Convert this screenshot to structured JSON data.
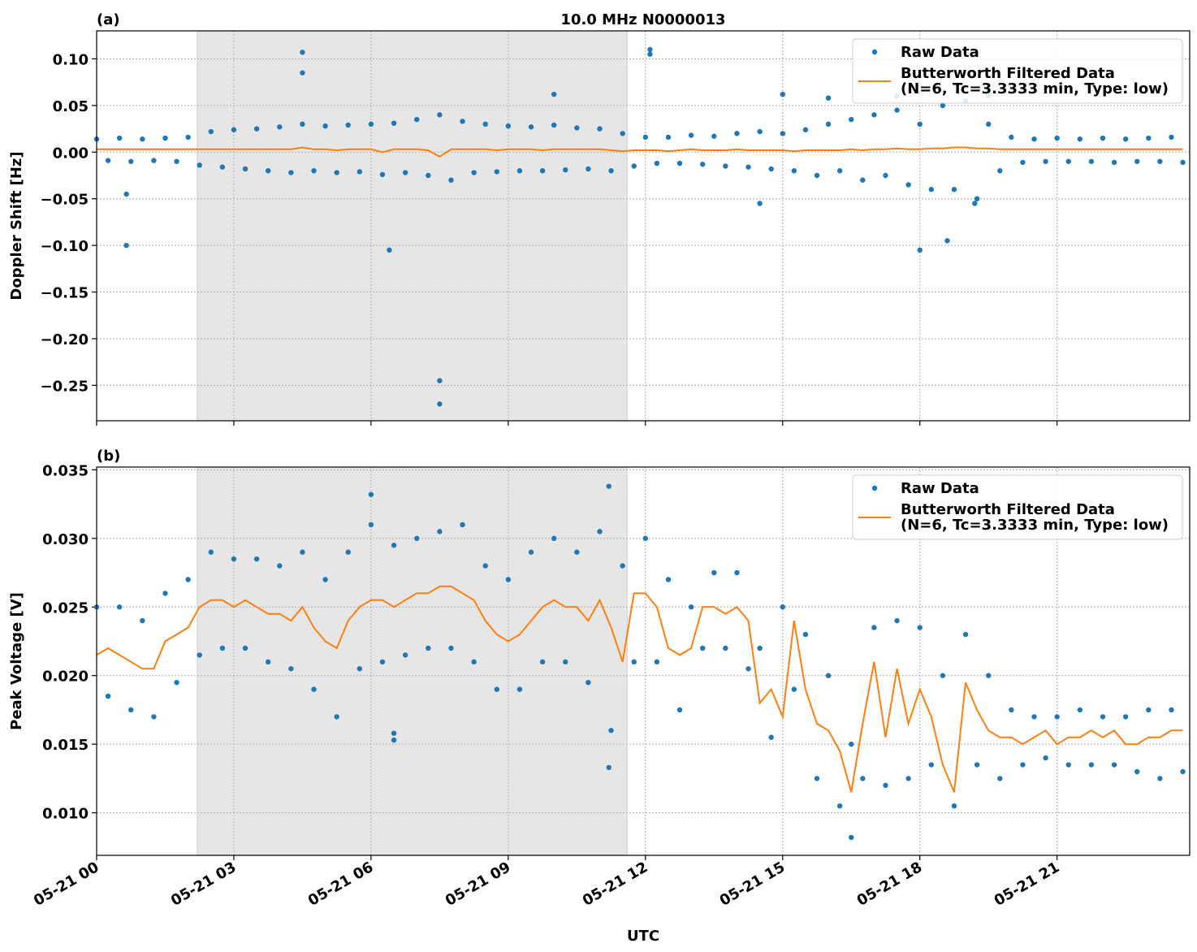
{
  "chart_data": [
    {
      "type": "scatter",
      "title": "10.0 MHz N0000013",
      "panel_label": "(a)",
      "ylabel": "Doppler Shift [Hz]",
      "xlim": [
        0,
        23.9
      ],
      "ylim": [
        -0.288,
        0.13
      ],
      "grid": true,
      "legend": "upper right",
      "shade": [
        2.2,
        11.6
      ],
      "yticks": [
        {
          "value": 0.1,
          "label": "0.10"
        },
        {
          "value": 0.05,
          "label": "0.05"
        },
        {
          "value": 0,
          "label": "0.00"
        },
        {
          "value": -0.05,
          "label": "−0.05"
        },
        {
          "value": -0.1,
          "label": "−0.10"
        },
        {
          "value": -0.15,
          "label": "−0.15"
        },
        {
          "value": -0.2,
          "label": "−0.20"
        },
        {
          "value": -0.25,
          "label": "−0.25"
        }
      ],
      "series": [
        {
          "name": "Raw Data",
          "color": "#1f77b4",
          "mode": "markers",
          "x": [
            0,
            0.25,
            0.5,
            0.75,
            1,
            1.25,
            1.5,
            1.75,
            2,
            2.25,
            2.5,
            2.75,
            3,
            3.25,
            3.5,
            3.75,
            4,
            4.25,
            4.5,
            4.75,
            5,
            5.25,
            5.5,
            5.75,
            6,
            6.25,
            6.5,
            6.75,
            7,
            7.25,
            7.5,
            7.75,
            8,
            8.25,
            8.5,
            8.75,
            9,
            9.25,
            9.5,
            9.75,
            10,
            10.25,
            10.5,
            10.75,
            11,
            11.25,
            11.5,
            11.75,
            12,
            12.25,
            12.5,
            12.75,
            13,
            13.25,
            13.5,
            13.75,
            14,
            14.25,
            14.5,
            14.75,
            15,
            15.25,
            15.5,
            15.75,
            16,
            16.25,
            16.5,
            16.75,
            17,
            17.25,
            17.5,
            17.75,
            18,
            18.25,
            18.5,
            18.75,
            19,
            19.25,
            19.5,
            19.75,
            20,
            20.25,
            20.5,
            20.75,
            21,
            21.25,
            21.5,
            21.75,
            22,
            22.25,
            22.5,
            22.75,
            23,
            23.25,
            23.5,
            23.75,
            4.5,
            4.5,
            0.65,
            0.65,
            6.4,
            7.5,
            7.5,
            10,
            12.1,
            12.1,
            14.5,
            16,
            18,
            18.6,
            19.2,
            19.5,
            17.5,
            15
          ],
          "values": [
            0.014,
            -0.009,
            0.015,
            -0.01,
            0.014,
            -0.009,
            0.015,
            -0.01,
            0.016,
            -0.014,
            0.022,
            -0.016,
            0.024,
            -0.018,
            0.025,
            -0.02,
            0.027,
            -0.022,
            0.03,
            -0.02,
            0.028,
            -0.022,
            0.029,
            -0.021,
            0.03,
            -0.024,
            0.031,
            -0.022,
            0.035,
            -0.025,
            0.04,
            -0.03,
            0.033,
            -0.022,
            0.03,
            -0.021,
            0.028,
            -0.02,
            0.027,
            -0.02,
            0.029,
            -0.019,
            0.026,
            -0.018,
            0.025,
            -0.02,
            0.02,
            -0.015,
            0.016,
            -0.012,
            0.016,
            -0.012,
            0.018,
            -0.013,
            0.017,
            -0.015,
            0.02,
            -0.016,
            0.022,
            -0.018,
            0.02,
            -0.02,
            0.024,
            -0.025,
            0.03,
            -0.02,
            0.035,
            -0.03,
            0.04,
            -0.025,
            0.045,
            -0.035,
            0.03,
            -0.04,
            0.05,
            -0.04,
            0.055,
            -0.05,
            0.03,
            -0.02,
            0.016,
            -0.011,
            0.014,
            -0.01,
            0.015,
            -0.01,
            0.014,
            -0.01,
            0.015,
            -0.011,
            0.014,
            -0.01,
            0.015,
            -0.01,
            0.016,
            -0.011,
            0.107,
            0.085,
            -0.045,
            -0.1,
            -0.105,
            -0.245,
            -0.27,
            0.062,
            0.11,
            0.105,
            -0.055,
            0.058,
            -0.105,
            -0.095,
            -0.055,
            0.06,
            0.06,
            0.062
          ]
        },
        {
          "name": "Butterworth Filtered Data",
          "name_detail": "(N=6, Tc=3.3333 min, Type: low)",
          "color": "#ff7f0e",
          "mode": "line",
          "x": [
            0,
            0.25,
            0.5,
            0.75,
            1,
            1.25,
            1.5,
            1.75,
            2,
            2.25,
            2.5,
            2.75,
            3,
            3.25,
            3.5,
            3.75,
            4,
            4.25,
            4.5,
            4.75,
            5,
            5.25,
            5.5,
            5.75,
            6,
            6.25,
            6.5,
            6.75,
            7,
            7.25,
            7.5,
            7.75,
            8,
            8.25,
            8.5,
            8.75,
            9,
            9.25,
            9.5,
            9.75,
            10,
            10.25,
            10.5,
            10.75,
            11,
            11.25,
            11.5,
            11.75,
            12,
            12.25,
            12.5,
            12.75,
            13,
            13.25,
            13.5,
            13.75,
            14,
            14.25,
            14.5,
            14.75,
            15,
            15.25,
            15.5,
            15.75,
            16,
            16.25,
            16.5,
            16.75,
            17,
            17.25,
            17.5,
            17.75,
            18,
            18.25,
            18.5,
            18.75,
            19,
            19.25,
            19.5,
            19.75,
            20,
            20.25,
            20.5,
            20.75,
            21,
            21.25,
            21.5,
            21.75,
            22,
            22.25,
            22.5,
            22.75,
            23,
            23.25,
            23.5,
            23.75
          ],
          "values": [
            0.003,
            0.003,
            0.003,
            0.003,
            0.003,
            0.003,
            0.003,
            0.003,
            0.003,
            0.003,
            0.003,
            0.003,
            0.003,
            0.003,
            0.003,
            0.003,
            0.003,
            0.003,
            0.005,
            0.003,
            0.003,
            0.002,
            0.003,
            0.003,
            0.003,
            0.0,
            0.003,
            0.003,
            0.003,
            0.002,
            -0.005,
            0.003,
            0.003,
            0.003,
            0.003,
            0.002,
            0.003,
            0.003,
            0.003,
            0.002,
            0.003,
            0.003,
            0.003,
            0.003,
            0.003,
            0.002,
            0.001,
            0.002,
            0.002,
            0.002,
            0.001,
            0.002,
            0.003,
            0.002,
            0.002,
            0.002,
            0.003,
            0.002,
            0.002,
            0.002,
            0.002,
            0.001,
            0.002,
            0.002,
            0.002,
            0.002,
            0.003,
            0.002,
            0.003,
            0.003,
            0.004,
            0.003,
            0.003,
            0.004,
            0.004,
            0.005,
            0.005,
            0.004,
            0.004,
            0.003,
            0.003,
            0.003,
            0.003,
            0.003,
            0.003,
            0.003,
            0.003,
            0.003,
            0.003,
            0.003,
            0.003,
            0.003,
            0.003,
            0.003,
            0.003,
            0.003
          ]
        }
      ]
    },
    {
      "type": "scatter",
      "panel_label": "(b)",
      "ylabel": "Peak Voltage [V]",
      "xlabel": "UTC",
      "xlim": [
        0,
        23.9
      ],
      "ylim": [
        0.0069,
        0.0352
      ],
      "grid": true,
      "legend": "upper right",
      "shade": [
        2.2,
        11.6
      ],
      "xticks": [
        {
          "value": 0,
          "label": "05-21 00"
        },
        {
          "value": 3,
          "label": "05-21 03"
        },
        {
          "value": 6,
          "label": "05-21 06"
        },
        {
          "value": 9,
          "label": "05-21 09"
        },
        {
          "value": 12,
          "label": "05-21 12"
        },
        {
          "value": 15,
          "label": "05-21 15"
        },
        {
          "value": 18,
          "label": "05-21 18"
        },
        {
          "value": 21,
          "label": "05-21 21"
        }
      ],
      "yticks": [
        {
          "value": 0.035,
          "label": "0.035"
        },
        {
          "value": 0.03,
          "label": "0.030"
        },
        {
          "value": 0.025,
          "label": "0.025"
        },
        {
          "value": 0.02,
          "label": "0.020"
        },
        {
          "value": 0.015,
          "label": "0.015"
        },
        {
          "value": 0.01,
          "label": "0.010"
        }
      ],
      "series": [
        {
          "name": "Raw Data",
          "color": "#1f77b4",
          "mode": "markers",
          "x": [
            0,
            0.25,
            0.5,
            0.75,
            1,
            1.25,
            1.5,
            1.75,
            2,
            2.25,
            2.5,
            2.75,
            3,
            3.25,
            3.5,
            3.75,
            4,
            4.25,
            4.5,
            4.75,
            5,
            5.25,
            5.5,
            5.75,
            6,
            6.25,
            6.5,
            6.75,
            7,
            7.25,
            7.5,
            7.75,
            8,
            8.25,
            8.5,
            8.75,
            9,
            9.25,
            9.5,
            9.75,
            10,
            10.25,
            10.5,
            10.75,
            11,
            11.25,
            11.5,
            11.75,
            12,
            12.25,
            12.5,
            12.75,
            13,
            13.25,
            13.5,
            13.75,
            14,
            14.25,
            14.5,
            14.75,
            15,
            15.25,
            15.5,
            15.75,
            16,
            16.25,
            16.5,
            16.75,
            17,
            17.25,
            17.5,
            17.75,
            18,
            18.25,
            18.5,
            18.75,
            19,
            19.25,
            19.5,
            19.75,
            20,
            20.25,
            20.5,
            20.75,
            21,
            21.25,
            21.5,
            21.75,
            22,
            22.25,
            22.5,
            22.75,
            23,
            23.25,
            23.5,
            23.75,
            6.5,
            6.5,
            11.2,
            11.2,
            16.5,
            6
          ],
          "values": [
            0.025,
            0.0185,
            0.025,
            0.0175,
            0.024,
            0.017,
            0.026,
            0.0195,
            0.027,
            0.0215,
            0.029,
            0.022,
            0.0285,
            0.022,
            0.0285,
            0.021,
            0.028,
            0.0205,
            0.029,
            0.019,
            0.027,
            0.017,
            0.029,
            0.0205,
            0.031,
            0.021,
            0.0295,
            0.0215,
            0.03,
            0.022,
            0.0305,
            0.022,
            0.031,
            0.021,
            0.028,
            0.019,
            0.027,
            0.019,
            0.029,
            0.021,
            0.03,
            0.021,
            0.029,
            0.0195,
            0.0305,
            0.016,
            0.028,
            0.021,
            0.03,
            0.021,
            0.027,
            0.0175,
            0.025,
            0.022,
            0.0275,
            0.022,
            0.0275,
            0.0205,
            0.022,
            0.0155,
            0.025,
            0.019,
            0.023,
            0.0125,
            0.02,
            0.0105,
            0.015,
            0.0125,
            0.0235,
            0.012,
            0.024,
            0.0125,
            0.0235,
            0.0135,
            0.02,
            0.0105,
            0.023,
            0.0135,
            0.02,
            0.0125,
            0.0175,
            0.0135,
            0.017,
            0.014,
            0.017,
            0.0135,
            0.0175,
            0.0135,
            0.017,
            0.0135,
            0.017,
            0.013,
            0.0175,
            0.0125,
            0.0175,
            0.013,
            0.0153,
            0.0158,
            0.0133,
            0.0338,
            0.0082,
            0.0332
          ]
        },
        {
          "name": "Butterworth Filtered Data",
          "name_detail": "(N=6, Tc=3.3333 min, Type: low)",
          "color": "#ff7f0e",
          "mode": "line",
          "x": [
            0,
            0.25,
            0.5,
            0.75,
            1,
            1.25,
            1.5,
            1.75,
            2,
            2.25,
            2.5,
            2.75,
            3,
            3.25,
            3.5,
            3.75,
            4,
            4.25,
            4.5,
            4.75,
            5,
            5.25,
            5.5,
            5.75,
            6,
            6.25,
            6.5,
            6.75,
            7,
            7.25,
            7.5,
            7.75,
            8,
            8.25,
            8.5,
            8.75,
            9,
            9.25,
            9.5,
            9.75,
            10,
            10.25,
            10.5,
            10.75,
            11,
            11.25,
            11.5,
            11.75,
            12,
            12.25,
            12.5,
            12.75,
            13,
            13.25,
            13.5,
            13.75,
            14,
            14.25,
            14.5,
            14.75,
            15,
            15.25,
            15.5,
            15.75,
            16,
            16.25,
            16.5,
            16.75,
            17,
            17.25,
            17.5,
            17.75,
            18,
            18.25,
            18.5,
            18.75,
            19,
            19.25,
            19.5,
            19.75,
            20,
            20.25,
            20.5,
            20.75,
            21,
            21.25,
            21.5,
            21.75,
            22,
            22.25,
            22.5,
            22.75,
            23,
            23.25,
            23.5,
            23.75
          ],
          "values": [
            0.0215,
            0.022,
            0.0215,
            0.021,
            0.0205,
            0.0205,
            0.0225,
            0.023,
            0.0235,
            0.025,
            0.0255,
            0.0255,
            0.025,
            0.0255,
            0.025,
            0.0245,
            0.0245,
            0.024,
            0.025,
            0.0235,
            0.0225,
            0.022,
            0.024,
            0.025,
            0.0255,
            0.0255,
            0.025,
            0.0255,
            0.026,
            0.026,
            0.0265,
            0.0265,
            0.026,
            0.0255,
            0.024,
            0.023,
            0.0225,
            0.023,
            0.024,
            0.025,
            0.0255,
            0.025,
            0.025,
            0.024,
            0.0255,
            0.0235,
            0.021,
            0.026,
            0.026,
            0.025,
            0.022,
            0.0215,
            0.022,
            0.025,
            0.025,
            0.0245,
            0.025,
            0.024,
            0.018,
            0.019,
            0.017,
            0.024,
            0.019,
            0.0165,
            0.016,
            0.0145,
            0.0115,
            0.0165,
            0.021,
            0.0155,
            0.0205,
            0.0165,
            0.019,
            0.017,
            0.0135,
            0.0115,
            0.0195,
            0.0175,
            0.016,
            0.0155,
            0.0155,
            0.015,
            0.0155,
            0.016,
            0.015,
            0.0155,
            0.0155,
            0.016,
            0.0155,
            0.016,
            0.015,
            0.015,
            0.0155,
            0.0155,
            0.016,
            0.016
          ]
        }
      ]
    }
  ]
}
